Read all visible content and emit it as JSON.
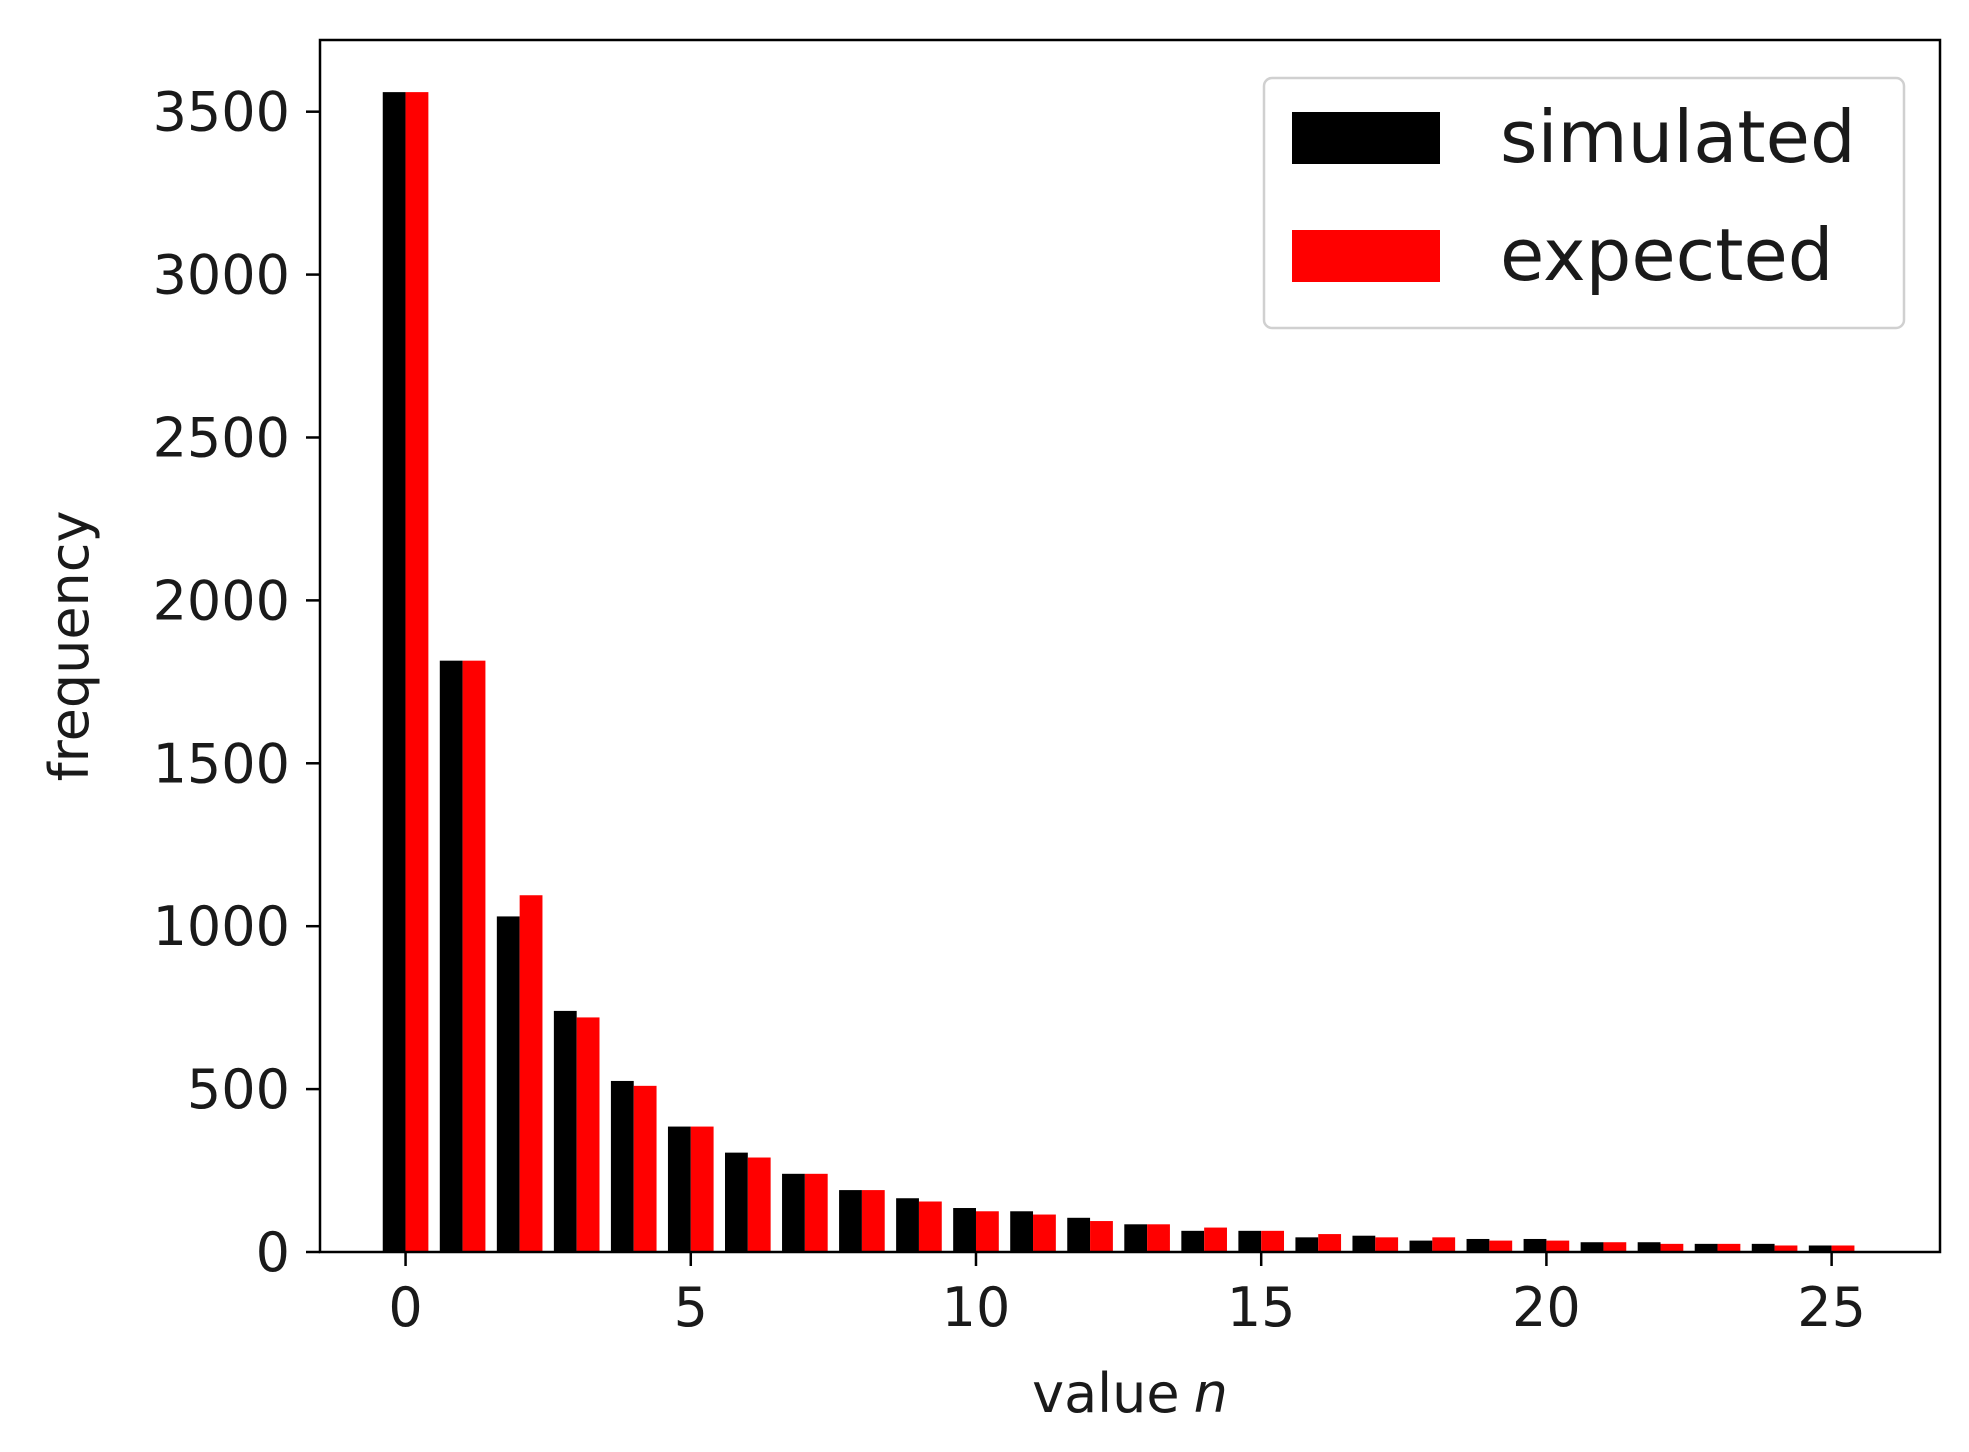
{
  "chart_data": {
    "type": "bar",
    "title": "",
    "xlabel": "value",
    "xlabel_var": "n",
    "ylabel": "frequency",
    "x": [
      0,
      1,
      2,
      3,
      4,
      5,
      6,
      7,
      8,
      9,
      10,
      11,
      12,
      13,
      14,
      15,
      16,
      17,
      18,
      19,
      20,
      21,
      22,
      23,
      24,
      25
    ],
    "xlim": [
      -1.5,
      26.9
    ],
    "ylim": [
      0,
      3720
    ],
    "x_ticks": [
      0,
      5,
      10,
      15,
      20,
      25
    ],
    "y_ticks": [
      0,
      500,
      1000,
      1500,
      2000,
      2500,
      3000,
      3500
    ],
    "x_tick_labels": [
      "0",
      "5",
      "10",
      "15",
      "20",
      "25"
    ],
    "y_tick_labels": [
      "0",
      "500",
      "1000",
      "1500",
      "2000",
      "2500",
      "3000",
      "3500"
    ],
    "grid": false,
    "legend_position": "top-right",
    "series": [
      {
        "name": "simulated",
        "color": "#000000",
        "values": [
          3560,
          1815,
          1030,
          740,
          525,
          385,
          305,
          240,
          190,
          165,
          135,
          125,
          105,
          85,
          65,
          65,
          45,
          50,
          35,
          40,
          40,
          30,
          30,
          25,
          25,
          20
        ]
      },
      {
        "name": "expected",
        "color": "#ff0000",
        "values": [
          3560,
          1815,
          1095,
          720,
          510,
          385,
          290,
          240,
          190,
          155,
          125,
          115,
          95,
          85,
          75,
          65,
          55,
          45,
          45,
          35,
          35,
          30,
          25,
          25,
          20,
          20
        ]
      }
    ]
  }
}
